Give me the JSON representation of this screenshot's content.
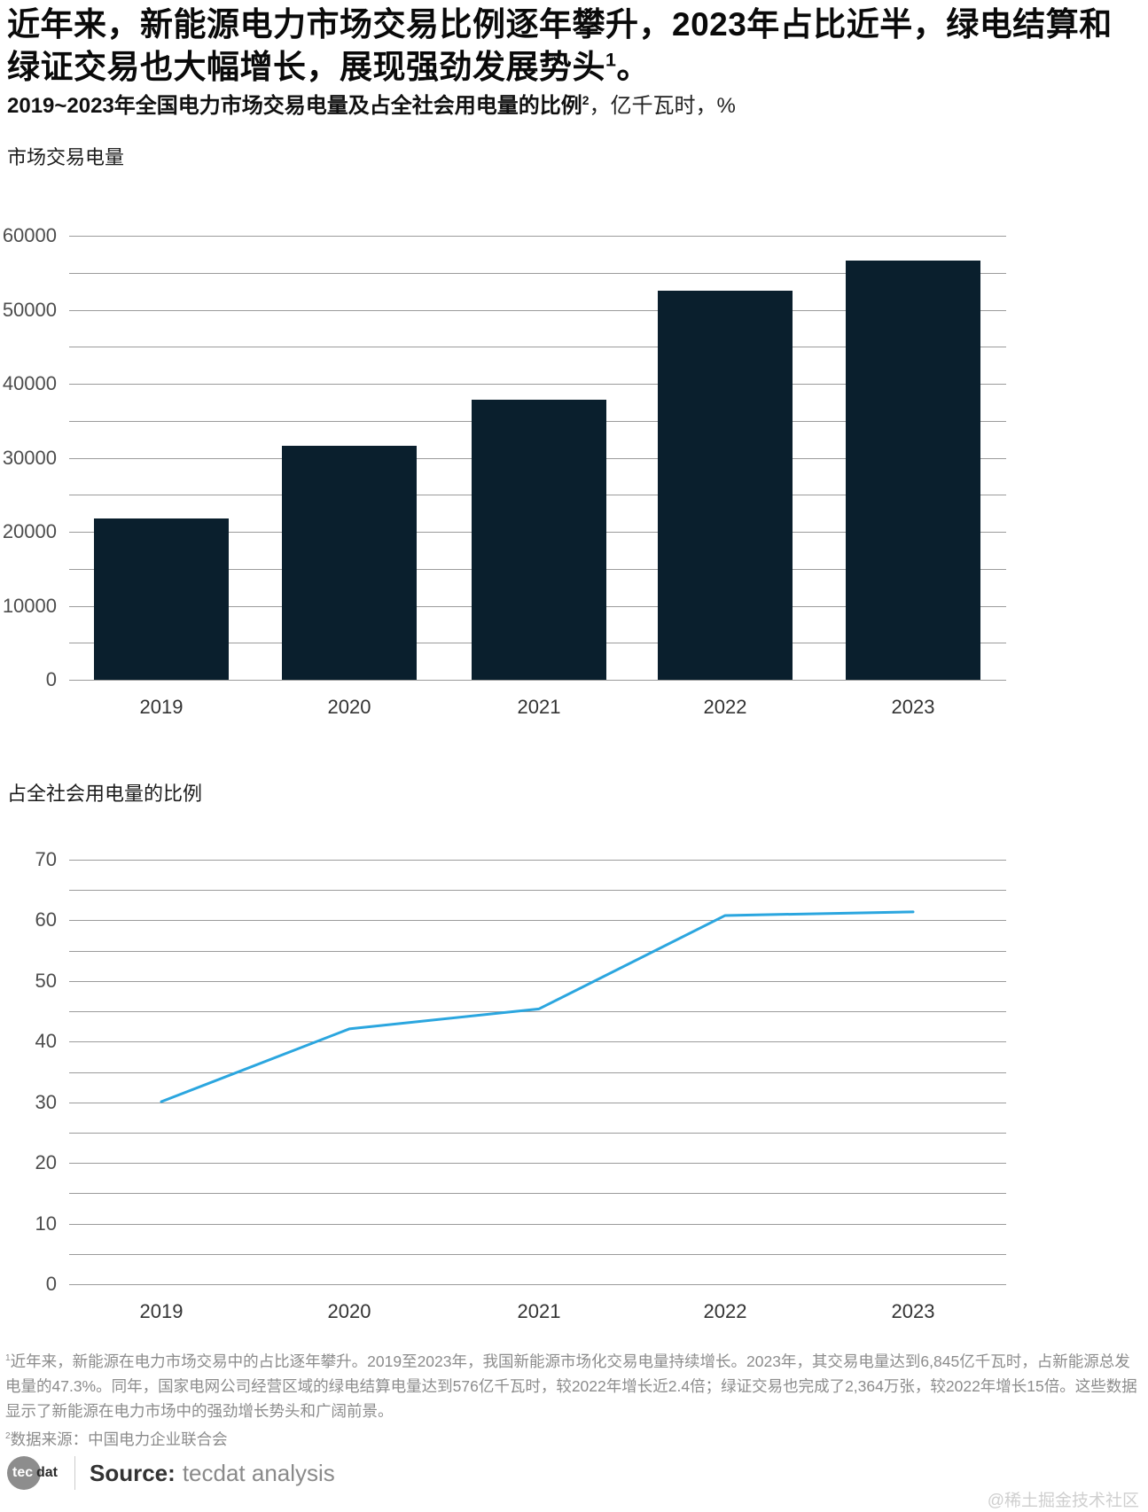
{
  "header": {
    "headline": "近年来，新能源电力市场交易比例逐年攀升，2023年占比近半，绿电结算和绿证交易也大幅增长，展现强劲发展势头",
    "headline_sup": "1",
    "headline_tail": "。",
    "title_bold": "2019~2023年全国电力市场交易电量及占全社会用电量的比例",
    "title_sup": "2",
    "title_tail": "，亿千瓦时，%"
  },
  "chart_data": [
    {
      "type": "bar",
      "title": "市场交易电量",
      "categories": [
        "2019",
        "2020",
        "2021",
        "2022",
        "2023"
      ],
      "values": [
        21771,
        31663,
        37787,
        52543,
        56679
      ],
      "unit": "亿千瓦时",
      "ylim": [
        0,
        60000
      ],
      "yticks": [
        0,
        10000,
        20000,
        30000,
        40000,
        50000,
        60000
      ],
      "grid_step": 5000,
      "grid": true,
      "legend": "none",
      "bar_color": "#0A1F2D"
    },
    {
      "type": "line",
      "title": "占全社会用电量的比例",
      "categories": [
        "2019",
        "2020",
        "2021",
        "2022",
        "2023"
      ],
      "values": [
        30.1,
        42.1,
        45.4,
        60.8,
        61.4
      ],
      "unit": "%",
      "ylim": [
        0,
        70
      ],
      "yticks": [
        0,
        10,
        20,
        30,
        40,
        50,
        60,
        70
      ],
      "grid_step": 5,
      "grid": true,
      "legend": "none",
      "line_color": "#2BA6DF"
    }
  ],
  "footnotes": {
    "fn1_marker": "1",
    "fn1_text": "近年来，新能源在电力市场交易中的占比逐年攀升。2019至2023年，我国新能源市场化交易电量持续增长。2023年，其交易电量达到6,845亿千瓦时，占新能源总发电量的47.3%。同年，国家电网公司经营区域的绿电结算电量达到576亿千瓦时，较2022年增长近2.4倍；绿证交易也完成了2,364万张，较2022年增长15倍。这些数据显示了新能源在电力市场中的强劲增长势头和广阔前景。",
    "fn2_marker": "2",
    "fn2_text": "数据来源：中国电力企业联合会"
  },
  "source": {
    "logo_tec": "tec",
    "logo_dat": "dat",
    "label": "Source:",
    "value": "tecdat analysis"
  },
  "watermark": "@稀土掘金技术社区",
  "colors": {
    "bar": "#0A1F2D",
    "line": "#2BA6DF",
    "gridline": "#9B9B9B",
    "axis_text": "#4D4D4D",
    "footnote_text": "#8C8C8C",
    "watermark": "#CFCFCF",
    "logo_circle": "#8D8D8D"
  }
}
